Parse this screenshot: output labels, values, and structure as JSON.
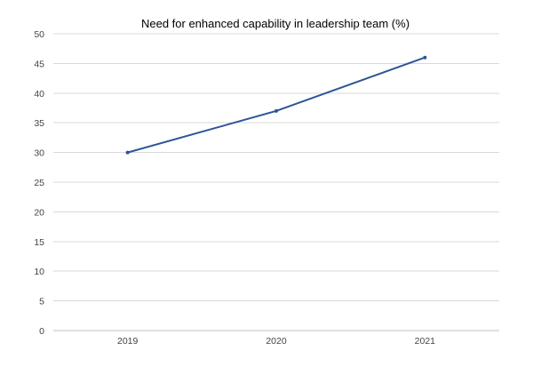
{
  "chart_data": {
    "type": "line",
    "title": "Need for enhanced capability in leadership team (%)",
    "xlabel": "",
    "ylabel": "",
    "categories": [
      "2019",
      "2020",
      "2021"
    ],
    "series": [
      {
        "values": [
          30,
          37,
          46
        ]
      }
    ],
    "ylim": [
      0,
      50
    ],
    "yticks": [
      "0",
      "5",
      "10",
      "15",
      "20",
      "25",
      "30",
      "35",
      "40",
      "45",
      "50"
    ],
    "grid": true,
    "legend": "none",
    "colors": {
      "line": "#2f5597",
      "grid": "#d9d9d9",
      "axis_text": "#444444"
    }
  }
}
